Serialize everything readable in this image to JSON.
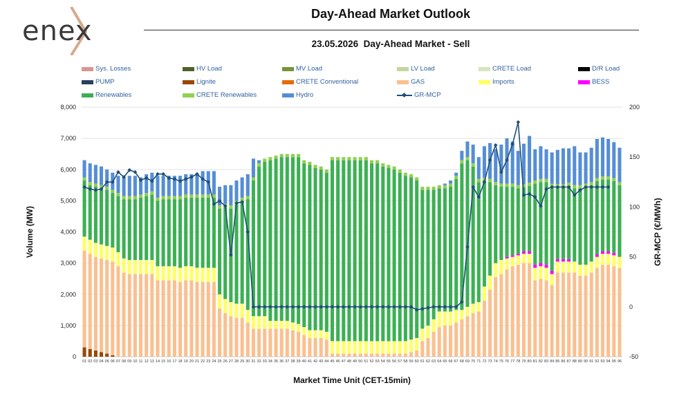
{
  "brand": {
    "name": "enex",
    "accent_color": "#d9a88a"
  },
  "title": "Day-Ahead Market Outlook",
  "subtitle": "23.05.2026  Day-Ahead Market - Sell",
  "legend": [
    {
      "label": "Sys. Losses",
      "color": "#d99694"
    },
    {
      "label": "HV Load",
      "color": "#4f6228"
    },
    {
      "label": "MV Load",
      "color": "#77933c"
    },
    {
      "label": "LV Load",
      "color": "#c3d69b"
    },
    {
      "label": "CRETE Load",
      "color": "#d7e4bd"
    },
    {
      "label": "D/R Load",
      "color": "#000000"
    },
    {
      "label": "PUMP",
      "color": "#254061"
    },
    {
      "label": "Lignite",
      "color": "#984807"
    },
    {
      "label": "CRETE Conventional",
      "color": "#e46c0a"
    },
    {
      "label": "GAS",
      "color": "#fac090"
    },
    {
      "label": "Imports",
      "color": "#ffff66"
    },
    {
      "label": "BESS",
      "color": "#ff00ff"
    },
    {
      "label": "Renewables",
      "color": "#3cb054"
    },
    {
      "label": "CRETE Renewables",
      "color": "#92d050"
    },
    {
      "label": "Hydro",
      "color": "#558ed5"
    },
    {
      "label": "GR-MCP",
      "color": "#1f4e79",
      "type": "line"
    }
  ],
  "chart_data": {
    "type": "bar",
    "stacked": true,
    "xlabel": "Market Time Unit (CET-15min)",
    "ylabel": "Volume (MW)",
    "y2label": "GR-MCP (€/MWh)",
    "ylim": [
      0,
      8000
    ],
    "y2lim": [
      -50,
      200
    ],
    "yticks": [
      "0",
      "1,000",
      "2,000",
      "3,000",
      "4,000",
      "5,000",
      "6,000",
      "7,000",
      "8,000"
    ],
    "y2ticks": [
      "-50",
      "0",
      "50",
      "100",
      "150",
      "200"
    ],
    "grid": true,
    "legend_position": "top",
    "categories": [
      "01",
      "02",
      "03",
      "04",
      "05",
      "06",
      "07",
      "08",
      "09",
      "10",
      "11",
      "12",
      "13",
      "14",
      "15",
      "16",
      "17",
      "18",
      "19",
      "20",
      "21",
      "22",
      "23",
      "24",
      "25",
      "26",
      "27",
      "28",
      "29",
      "30",
      "31",
      "32",
      "33",
      "34",
      "35",
      "36",
      "37",
      "38",
      "39",
      "40",
      "41",
      "42",
      "43",
      "44",
      "45",
      "46",
      "47",
      "48",
      "49",
      "50",
      "51",
      "52",
      "53",
      "54",
      "55",
      "56",
      "57",
      "58",
      "59",
      "60",
      "61",
      "62",
      "63",
      "64",
      "65",
      "66",
      "67",
      "68",
      "69",
      "70",
      "71",
      "72",
      "73",
      "74",
      "75",
      "76",
      "77",
      "78",
      "79",
      "80",
      "81",
      "82",
      "83",
      "84",
      "85",
      "86",
      "87",
      "88",
      "89",
      "90",
      "91",
      "92",
      "93",
      "94",
      "95",
      "96"
    ],
    "series": [
      {
        "name": "Lignite",
        "color": "#984807",
        "values": [
          300,
          250,
          200,
          150,
          100,
          50,
          0,
          0,
          0,
          0,
          0,
          0,
          0,
          0,
          0,
          0,
          0,
          0,
          0,
          0,
          0,
          0,
          0,
          0,
          0,
          0,
          0,
          0,
          0,
          0,
          0,
          0,
          0,
          0,
          0,
          0,
          0,
          0,
          0,
          0,
          0,
          0,
          0,
          0,
          0,
          0,
          0,
          0,
          0,
          0,
          0,
          0,
          0,
          0,
          0,
          0,
          0,
          0,
          0,
          0,
          0,
          0,
          0,
          0,
          0,
          0,
          0,
          0,
          0,
          0,
          0,
          0,
          0,
          0,
          0,
          0,
          0,
          0,
          0,
          0,
          0,
          0,
          0,
          0,
          0,
          0,
          0,
          0,
          0,
          0,
          0,
          0,
          0,
          0,
          0,
          0
        ]
      },
      {
        "name": "GAS",
        "color": "#fac090",
        "values": [
          3100,
          3050,
          3000,
          3000,
          3000,
          3000,
          2900,
          2700,
          2650,
          2650,
          2650,
          2650,
          2650,
          2450,
          2450,
          2450,
          2450,
          2400,
          2450,
          2450,
          2400,
          2400,
          2400,
          2400,
          1550,
          1400,
          1300,
          1250,
          1250,
          1100,
          900,
          900,
          900,
          900,
          900,
          900,
          900,
          850,
          800,
          700,
          600,
          600,
          600,
          550,
          100,
          100,
          100,
          100,
          100,
          100,
          100,
          100,
          100,
          100,
          100,
          100,
          100,
          100,
          150,
          200,
          500,
          600,
          800,
          950,
          1000,
          1000,
          1100,
          1200,
          1300,
          1400,
          1450,
          1800,
          2150,
          2550,
          2650,
          2800,
          2900,
          2950,
          3000,
          3000,
          2450,
          2500,
          2450,
          2300,
          2700,
          2700,
          2700,
          2700,
          2600,
          2600,
          2700,
          2850,
          2950,
          2950,
          2900,
          2850
        ]
      },
      {
        "name": "Imports",
        "color": "#ffff66",
        "values": [
          450,
          450,
          450,
          450,
          450,
          450,
          450,
          450,
          450,
          450,
          450,
          450,
          450,
          450,
          450,
          450,
          450,
          450,
          450,
          450,
          450,
          450,
          450,
          450,
          450,
          450,
          450,
          450,
          450,
          400,
          400,
          400,
          400,
          250,
          250,
          250,
          250,
          250,
          250,
          250,
          250,
          250,
          250,
          250,
          400,
          400,
          400,
          400,
          400,
          400,
          400,
          400,
          400,
          400,
          400,
          400,
          400,
          400,
          400,
          400,
          400,
          400,
          400,
          500,
          450,
          450,
          400,
          300,
          300,
          300,
          300,
          450,
          450,
          450,
          450,
          350,
          300,
          300,
          300,
          300,
          400,
          400,
          400,
          350,
          350,
          350,
          350,
          350,
          350,
          350,
          350,
          350,
          350,
          350,
          350,
          350
        ]
      },
      {
        "name": "BESS",
        "color": "#ff00ff",
        "values": [
          0,
          0,
          0,
          0,
          0,
          0,
          0,
          0,
          0,
          0,
          0,
          0,
          0,
          0,
          0,
          0,
          0,
          0,
          0,
          0,
          0,
          0,
          0,
          0,
          0,
          0,
          0,
          0,
          0,
          0,
          0,
          0,
          0,
          0,
          0,
          0,
          0,
          0,
          0,
          0,
          0,
          0,
          0,
          0,
          0,
          0,
          0,
          0,
          0,
          0,
          0,
          0,
          0,
          0,
          0,
          0,
          0,
          0,
          0,
          0,
          0,
          0,
          0,
          0,
          0,
          0,
          0,
          0,
          0,
          0,
          0,
          0,
          0,
          0,
          0,
          50,
          50,
          50,
          80,
          80,
          100,
          100,
          100,
          100,
          80,
          80,
          80,
          0,
          0,
          0,
          0,
          80,
          80,
          80,
          80,
          0
        ]
      },
      {
        "name": "Renewables",
        "color": "#3cb054",
        "values": [
          1800,
          1750,
          1800,
          1800,
          1800,
          1750,
          1800,
          1900,
          1950,
          1950,
          2000,
          2050,
          2100,
          2100,
          2150,
          2150,
          2150,
          2200,
          2200,
          2200,
          2250,
          2250,
          2250,
          2250,
          2750,
          2950,
          3000,
          3200,
          3300,
          3550,
          4350,
          4800,
          4950,
          5150,
          5200,
          5250,
          5250,
          5300,
          5350,
          5250,
          5300,
          5200,
          5150,
          5100,
          5800,
          5800,
          5800,
          5800,
          5800,
          5800,
          5800,
          5700,
          5700,
          5600,
          5550,
          5500,
          5400,
          5300,
          5200,
          5050,
          4450,
          4350,
          4150,
          3950,
          3950,
          4000,
          4200,
          4700,
          4700,
          4400,
          3850,
          3400,
          3000,
          2500,
          2350,
          2250,
          2200,
          2100,
          2050,
          2100,
          2600,
          2600,
          2650,
          2700,
          2300,
          2300,
          2350,
          2350,
          2450,
          2500,
          2450,
          2350,
          2300,
          2300,
          2300,
          2300
        ]
      },
      {
        "name": "CRETE Renewables",
        "color": "#92d050",
        "values": [
          100,
          100,
          100,
          100,
          100,
          100,
          100,
          100,
          100,
          100,
          100,
          100,
          100,
          100,
          100,
          100,
          100,
          100,
          100,
          100,
          100,
          100,
          100,
          100,
          100,
          100,
          100,
          100,
          100,
          100,
          100,
          100,
          100,
          100,
          100,
          100,
          100,
          100,
          100,
          100,
          100,
          100,
          100,
          100,
          100,
          100,
          100,
          100,
          100,
          100,
          100,
          100,
          100,
          100,
          100,
          100,
          100,
          100,
          100,
          100,
          100,
          100,
          100,
          100,
          100,
          100,
          100,
          100,
          100,
          100,
          100,
          100,
          100,
          100,
          100,
          100,
          100,
          100,
          100,
          100,
          100,
          100,
          100,
          100,
          100,
          100,
          100,
          100,
          100,
          100,
          100,
          100,
          100,
          100,
          100,
          100
        ]
      },
      {
        "name": "Hydro",
        "color": "#558ed5",
        "values": [
          550,
          600,
          600,
          600,
          550,
          550,
          550,
          600,
          650,
          650,
          550,
          600,
          600,
          700,
          650,
          650,
          650,
          650,
          650,
          650,
          650,
          750,
          750,
          750,
          600,
          600,
          650,
          650,
          650,
          700,
          600,
          100,
          0,
          0,
          0,
          0,
          0,
          0,
          0,
          0,
          0,
          0,
          0,
          0,
          0,
          0,
          0,
          0,
          0,
          0,
          0,
          0,
          0,
          0,
          0,
          0,
          0,
          0,
          0,
          0,
          0,
          0,
          0,
          0,
          50,
          100,
          100,
          300,
          500,
          600,
          700,
          1000,
          1150,
          1050,
          1250,
          1450,
          1350,
          1100,
          1300,
          1500,
          1000,
          1050,
          950,
          1000,
          1100,
          1150,
          1100,
          1250,
          1050,
          1000,
          1100,
          1250,
          1250,
          1200,
          1150,
          1100
        ]
      }
    ],
    "line_series": {
      "name": "GR-MCP",
      "color": "#1f4e79",
      "axis": "right",
      "values": [
        120,
        118,
        117,
        118,
        125,
        125,
        135,
        130,
        137,
        135,
        127,
        129,
        126,
        133,
        133,
        129,
        128,
        126,
        128,
        130,
        133,
        128,
        125,
        103,
        106,
        101,
        52,
        104,
        105,
        75,
        0,
        0,
        0,
        0,
        0,
        0,
        0,
        0,
        0,
        0,
        0,
        0,
        0,
        0,
        0,
        0,
        0,
        0,
        0,
        0,
        0,
        0,
        0,
        0,
        0,
        0,
        0,
        0,
        0,
        -3,
        -2,
        -1,
        0,
        0,
        0,
        0,
        0,
        5,
        60,
        120,
        110,
        125,
        147,
        162,
        135,
        147,
        163,
        185,
        112,
        113,
        110,
        101,
        118,
        120,
        120,
        120,
        120,
        112,
        117,
        120,
        120,
        120,
        120,
        120
      ]
    }
  }
}
